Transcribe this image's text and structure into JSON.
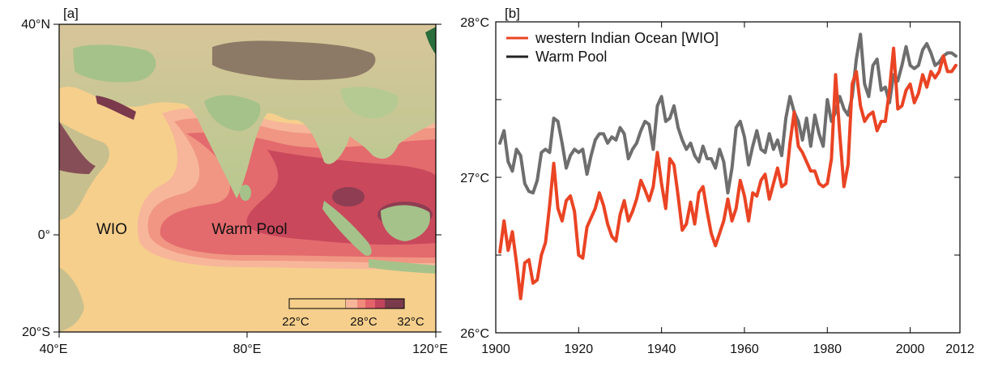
{
  "colors": {
    "wio": "#ea4424",
    "warm_pool": "#6e6e6e",
    "ocean": "#f6cf8c",
    "land_low": "#9fc08a",
    "land_mid": "#e8d4a6",
    "land_high": "#8d7a66"
  },
  "chart_data": [
    {
      "type": "map",
      "panel_label": "[a]",
      "xlabel": "",
      "ylabel": "",
      "x_ticks": [
        "40°E",
        "80°E",
        "120°E"
      ],
      "y_ticks": [
        "40°N",
        "0°",
        "20°S"
      ],
      "region_labels": [
        "WIO",
        "Warm Pool"
      ],
      "colorbar": {
        "tick_labels": [
          "22°C",
          "28°C",
          "32°C"
        ],
        "colors": [
          "#f6cf8c",
          "#f7b69a",
          "#f08a7c",
          "#e4636b",
          "#c0455c",
          "#7a3a4c"
        ]
      }
    },
    {
      "type": "line",
      "panel_label": "[b]",
      "xlabel": "",
      "ylabel": "",
      "xlim": [
        1900,
        2012
      ],
      "ylim": [
        26,
        28
      ],
      "x_ticks": [
        "1900",
        "1920",
        "1940",
        "1960",
        "1980",
        "2000",
        "2012"
      ],
      "y_ticks": [
        "26°C",
        "27°C",
        "28°C"
      ],
      "legend_position": "top-left",
      "x": [
        1901,
        1902,
        1903,
        1904,
        1905,
        1906,
        1907,
        1908,
        1909,
        1910,
        1911,
        1912,
        1913,
        1914,
        1915,
        1916,
        1917,
        1918,
        1919,
        1920,
        1921,
        1922,
        1923,
        1924,
        1925,
        1926,
        1927,
        1928,
        1929,
        1930,
        1931,
        1932,
        1933,
        1934,
        1935,
        1936,
        1937,
        1938,
        1939,
        1940,
        1941,
        1942,
        1943,
        1944,
        1945,
        1946,
        1947,
        1948,
        1949,
        1950,
        1951,
        1952,
        1953,
        1954,
        1955,
        1956,
        1957,
        1958,
        1959,
        1960,
        1961,
        1962,
        1963,
        1964,
        1965,
        1966,
        1967,
        1968,
        1969,
        1970,
        1971,
        1972,
        1973,
        1974,
        1975,
        1976,
        1977,
        1978,
        1979,
        1980,
        1981,
        1982,
        1983,
        1984,
        1985,
        1986,
        1987,
        1988,
        1989,
        1990,
        1991,
        1992,
        1993,
        1994,
        1995,
        1996,
        1997,
        1998,
        1999,
        2000,
        2001,
        2002,
        2003,
        2004,
        2005,
        2006,
        2007,
        2008,
        2009,
        2010,
        2011
      ],
      "series": [
        {
          "name": "western Indian Ocean [WIO]",
          "color": "#ea4424",
          "values": [
            26.52,
            26.72,
            26.53,
            26.65,
            26.45,
            26.22,
            26.45,
            26.47,
            26.32,
            26.34,
            26.5,
            26.58,
            26.82,
            27.09,
            26.8,
            26.72,
            26.85,
            26.88,
            26.78,
            26.5,
            26.48,
            26.68,
            26.74,
            26.8,
            26.9,
            26.82,
            26.7,
            26.62,
            26.59,
            26.76,
            26.85,
            26.72,
            26.78,
            26.86,
            26.98,
            26.92,
            26.85,
            26.94,
            27.16,
            26.96,
            26.8,
            27.12,
            27.08,
            26.88,
            26.66,
            26.7,
            26.84,
            26.7,
            26.9,
            26.94,
            26.78,
            26.64,
            26.56,
            26.64,
            26.72,
            26.86,
            26.72,
            26.8,
            26.98,
            26.88,
            26.72,
            26.9,
            26.88,
            26.98,
            27.02,
            26.86,
            26.96,
            27.06,
            26.94,
            26.96,
            27.22,
            27.42,
            27.2,
            27.16,
            27.1,
            27.04,
            27.04,
            26.96,
            26.94,
            26.96,
            27.12,
            27.66,
            27.28,
            26.94,
            27.08,
            27.6,
            27.68,
            27.46,
            27.36,
            27.4,
            27.42,
            27.3,
            27.36,
            27.36,
            27.56,
            27.83,
            27.44,
            27.46,
            27.56,
            27.6,
            27.48,
            27.54,
            27.66,
            27.58,
            27.68,
            27.64,
            27.68,
            27.78,
            27.68,
            27.68,
            27.72
          ]
        },
        {
          "name": "Warm Pool",
          "color": "#6e6e6e",
          "values": [
            27.22,
            27.3,
            27.1,
            27.04,
            27.18,
            27.14,
            26.96,
            26.91,
            26.9,
            26.98,
            27.16,
            27.18,
            27.16,
            27.38,
            27.36,
            27.22,
            27.06,
            27.14,
            27.18,
            27.16,
            27.18,
            27.02,
            27.14,
            27.24,
            27.28,
            27.28,
            27.22,
            27.26,
            27.24,
            27.32,
            27.28,
            27.12,
            27.18,
            27.22,
            27.3,
            27.36,
            27.34,
            27.18,
            27.46,
            27.52,
            27.36,
            27.38,
            27.46,
            27.32,
            27.24,
            27.18,
            27.22,
            27.14,
            27.1,
            27.2,
            27.12,
            27.12,
            27.06,
            27.18,
            27.1,
            26.9,
            27.06,
            27.32,
            27.36,
            27.26,
            27.08,
            27.2,
            27.3,
            27.18,
            27.16,
            27.28,
            27.18,
            27.24,
            27.14,
            27.38,
            27.52,
            27.42,
            27.36,
            27.24,
            27.38,
            27.2,
            27.4,
            27.28,
            27.2,
            27.5,
            27.36,
            27.42,
            27.52,
            27.44,
            27.4,
            27.52,
            27.76,
            27.92,
            27.6,
            27.52,
            27.72,
            27.76,
            27.56,
            27.58,
            27.48,
            27.66,
            27.62,
            27.72,
            27.84,
            27.72,
            27.7,
            27.72,
            27.82,
            27.86,
            27.8,
            27.72,
            27.74,
            27.78,
            27.8,
            27.8,
            27.78
          ]
        }
      ]
    }
  ]
}
